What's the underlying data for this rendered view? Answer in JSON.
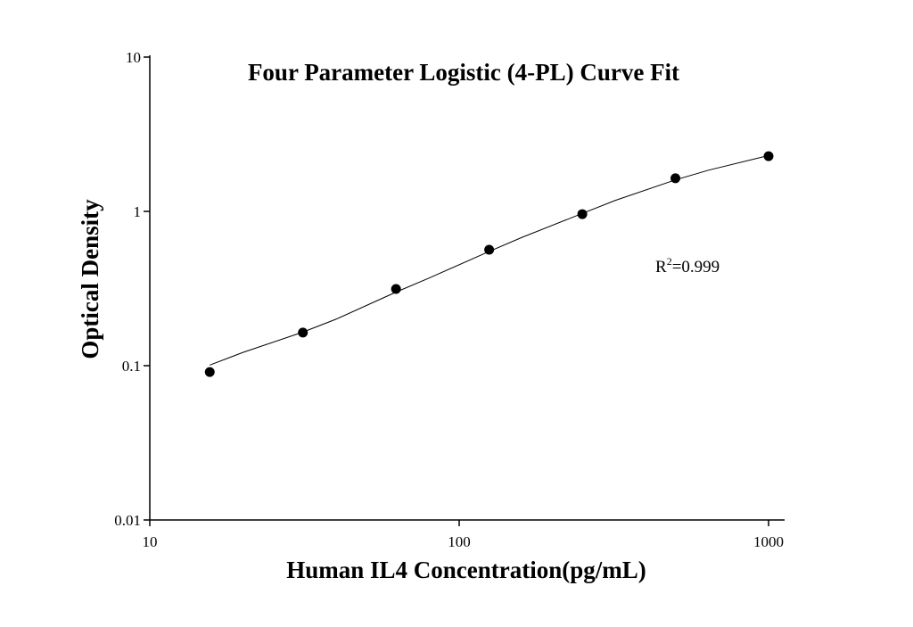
{
  "chart_data": {
    "type": "scatter",
    "title": "Four Parameter Logistic (4-PL) Curve Fit",
    "x_label": "Human IL4 Concentration(pg/mL)",
    "y_label": "Optical Density",
    "annotation": [
      "R",
      "2",
      "=0.999"
    ],
    "log_x": true,
    "log_y": true,
    "color": "#000000",
    "x": [
      15.625,
      31.25,
      62.5,
      125,
      250,
      500,
      1000
    ],
    "values": [
      0.091,
      0.164,
      0.314,
      0.564,
      0.96,
      1.64,
      2.28
    ],
    "curve": {
      "x": [
        15.625,
        20,
        31.25,
        40,
        62.5,
        80,
        125,
        160,
        250,
        320,
        500,
        640,
        1000
      ],
      "values": [
        0.101,
        0.122,
        0.165,
        0.2,
        0.3,
        0.37,
        0.55,
        0.68,
        0.97,
        1.18,
        1.6,
        1.85,
        2.3
      ]
    },
    "xlim": [
      10,
      1120
    ],
    "ylim": [
      0.01,
      10
    ],
    "xticks": [
      10,
      100,
      1000
    ],
    "yticks": [
      0.01,
      0.1,
      1,
      10
    ]
  }
}
